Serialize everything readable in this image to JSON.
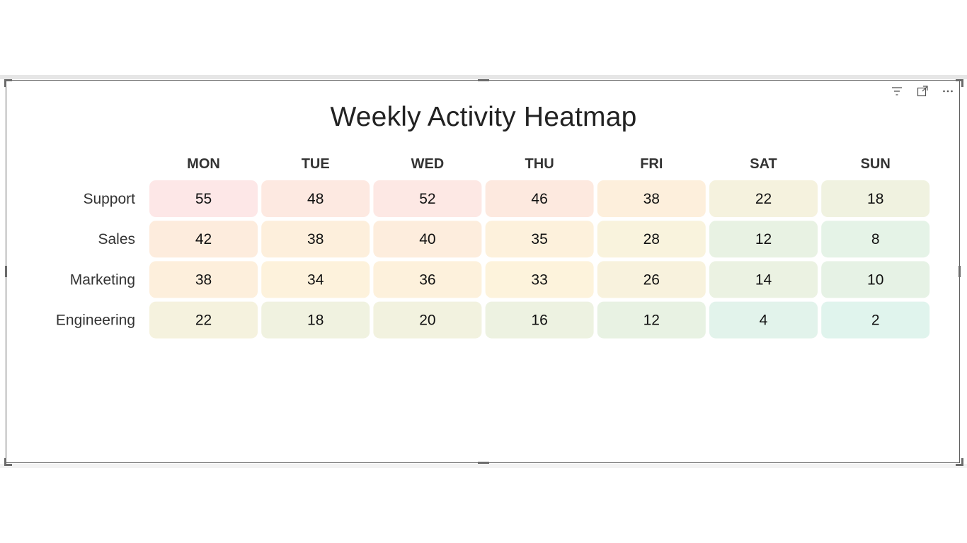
{
  "chart_data": {
    "type": "heatmap",
    "title": "Weekly Activity Heatmap",
    "columns": [
      "MON",
      "TUE",
      "WED",
      "THU",
      "FRI",
      "SAT",
      "SUN"
    ],
    "rows": [
      "Support",
      "Sales",
      "Marketing",
      "Engineering"
    ],
    "values": [
      [
        55,
        48,
        52,
        46,
        38,
        22,
        18
      ],
      [
        42,
        38,
        40,
        35,
        28,
        12,
        8
      ],
      [
        38,
        34,
        36,
        33,
        26,
        14,
        10
      ],
      [
        22,
        18,
        20,
        16,
        12,
        4,
        2
      ]
    ],
    "color_scale": {
      "stops": [
        "#dff4ef",
        "#e7f2e4",
        "#f5f2de",
        "#fdf3dc",
        "#fdeadd",
        "#fde7e7"
      ],
      "domain": [
        0,
        55
      ]
    }
  },
  "header_icons": [
    "filter-icon",
    "focus-mode-icon",
    "more-options-icon"
  ]
}
